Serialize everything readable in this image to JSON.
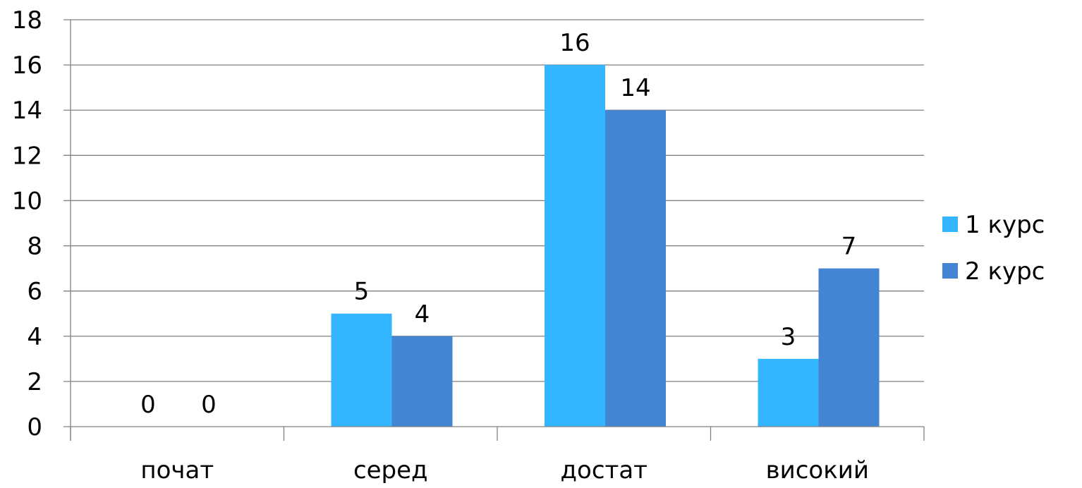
{
  "chart_data": {
    "type": "bar",
    "categories": [
      "почат",
      "серед",
      "достат",
      "високий"
    ],
    "series": [
      {
        "name": "1 курс",
        "values": [
          0,
          5,
          16,
          3
        ],
        "color": "#33B5FF"
      },
      {
        "name": "2 курс",
        "values": [
          0,
          4,
          14,
          7
        ],
        "color": "#4485D3"
      }
    ],
    "data_labels": [
      [
        "0",
        "5",
        "16",
        "3"
      ],
      [
        "0",
        "4",
        "14",
        "7"
      ]
    ],
    "title": "",
    "xlabel": "",
    "ylabel": "",
    "ylim": [
      0,
      18
    ],
    "ytick_step": 2,
    "yticks": [
      "0",
      "2",
      "4",
      "6",
      "8",
      "10",
      "12",
      "14",
      "16",
      "18"
    ],
    "grid": true,
    "gridline_color": "#808080",
    "legend_position": "right"
  }
}
